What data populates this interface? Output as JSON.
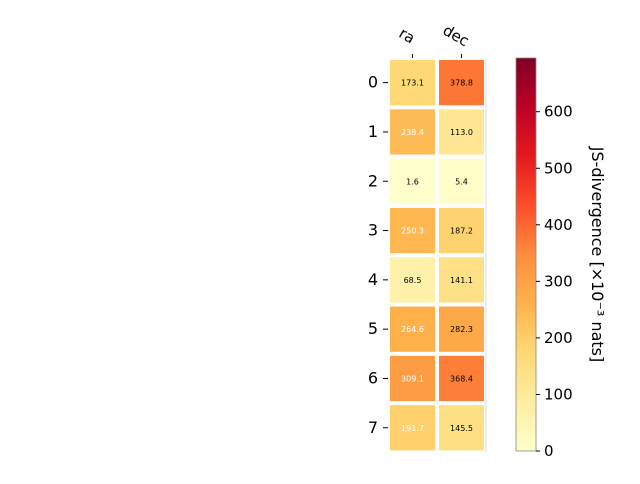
{
  "chart_data": {
    "type": "heatmap",
    "columns": [
      "ra",
      "dec"
    ],
    "rows": [
      "0",
      "1",
      "2",
      "3",
      "4",
      "5",
      "6",
      "7"
    ],
    "values": [
      [
        173.1,
        378.8
      ],
      [
        238.4,
        113.0
      ],
      [
        1.6,
        5.4
      ],
      [
        250.3,
        187.2
      ],
      [
        68.5,
        141.1
      ],
      [
        264.6,
        282.3
      ],
      [
        309.1,
        368.4
      ],
      [
        191.7,
        145.5
      ]
    ],
    "value_labels": [
      [
        "173.1",
        "378.8"
      ],
      [
        "238.4",
        "113.0"
      ],
      [
        "1.6",
        "5.4"
      ],
      [
        "250.3",
        "187.2"
      ],
      [
        "68.5",
        "141.1"
      ],
      [
        "264.6",
        "282.3"
      ],
      [
        "309.1",
        "368.4"
      ],
      [
        "191.7",
        "145.5"
      ]
    ],
    "colorbar": {
      "label": "JS-divergence [×10⁻³ nats]",
      "range": [
        0,
        695
      ],
      "ticks": [
        "0",
        "100",
        "200",
        "300",
        "400",
        "500",
        "600"
      ],
      "colormap": "YlOrRd"
    },
    "grid": false,
    "title": "",
    "xlabel": "",
    "ylabel": ""
  }
}
